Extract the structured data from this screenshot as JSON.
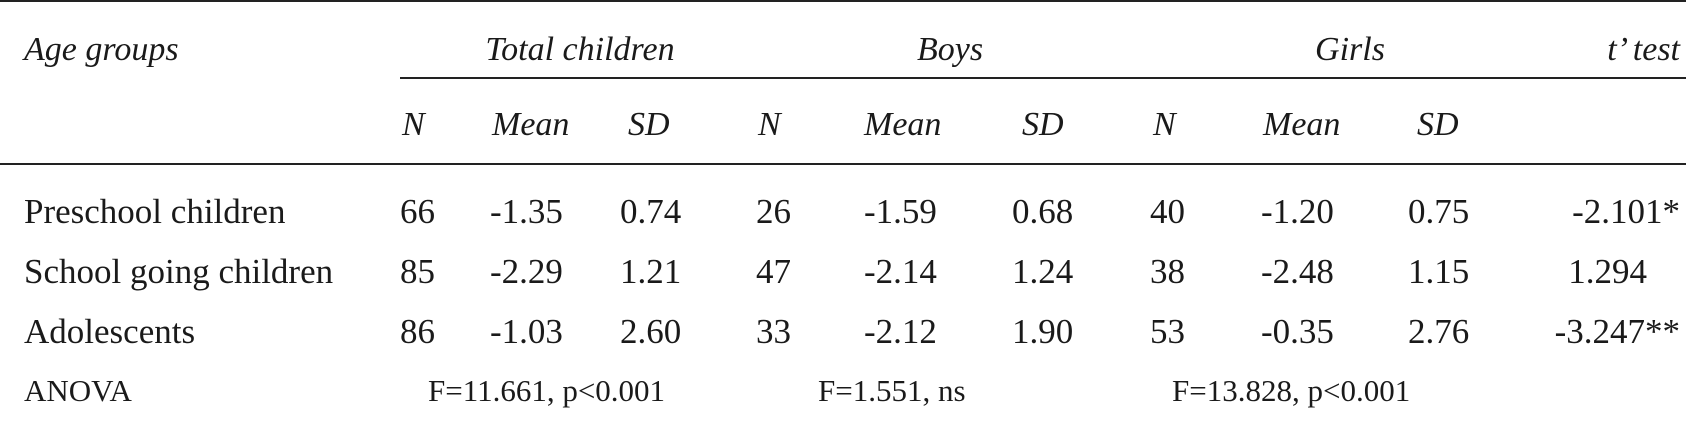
{
  "header": {
    "age_groups": "Age groups",
    "groups": [
      "Total children",
      "Boys",
      "Girls"
    ],
    "t_test": "t’ test",
    "subcols": [
      "N",
      "Mean",
      "SD"
    ]
  },
  "rows": [
    {
      "label": "Preschool children",
      "total": [
        "66",
        "-1.35",
        "0.74"
      ],
      "boys": [
        "26",
        "-1.59",
        "0.68"
      ],
      "girls": [
        "40",
        "-1.20",
        "0.75"
      ],
      "t": "-2.101*"
    },
    {
      "label": "School going children",
      "total": [
        "85",
        "-2.29",
        "1.21"
      ],
      "boys": [
        "47",
        "-2.14",
        "1.24"
      ],
      "girls": [
        "38",
        "-2.48",
        "1.15"
      ],
      "t": "1.294"
    },
    {
      "label": "Adolescents",
      "total": [
        "86",
        "-1.03",
        "2.60"
      ],
      "boys": [
        "33",
        "-2.12",
        "1.90"
      ],
      "girls": [
        "53",
        "-0.35",
        "2.76"
      ],
      "t": "-3.247**"
    }
  ],
  "anova": {
    "label": "ANOVA",
    "total": "F=11.661,  p<0.001",
    "boys": "F=1.551, ns",
    "girls": "F=13.828,  p<0.001"
  }
}
